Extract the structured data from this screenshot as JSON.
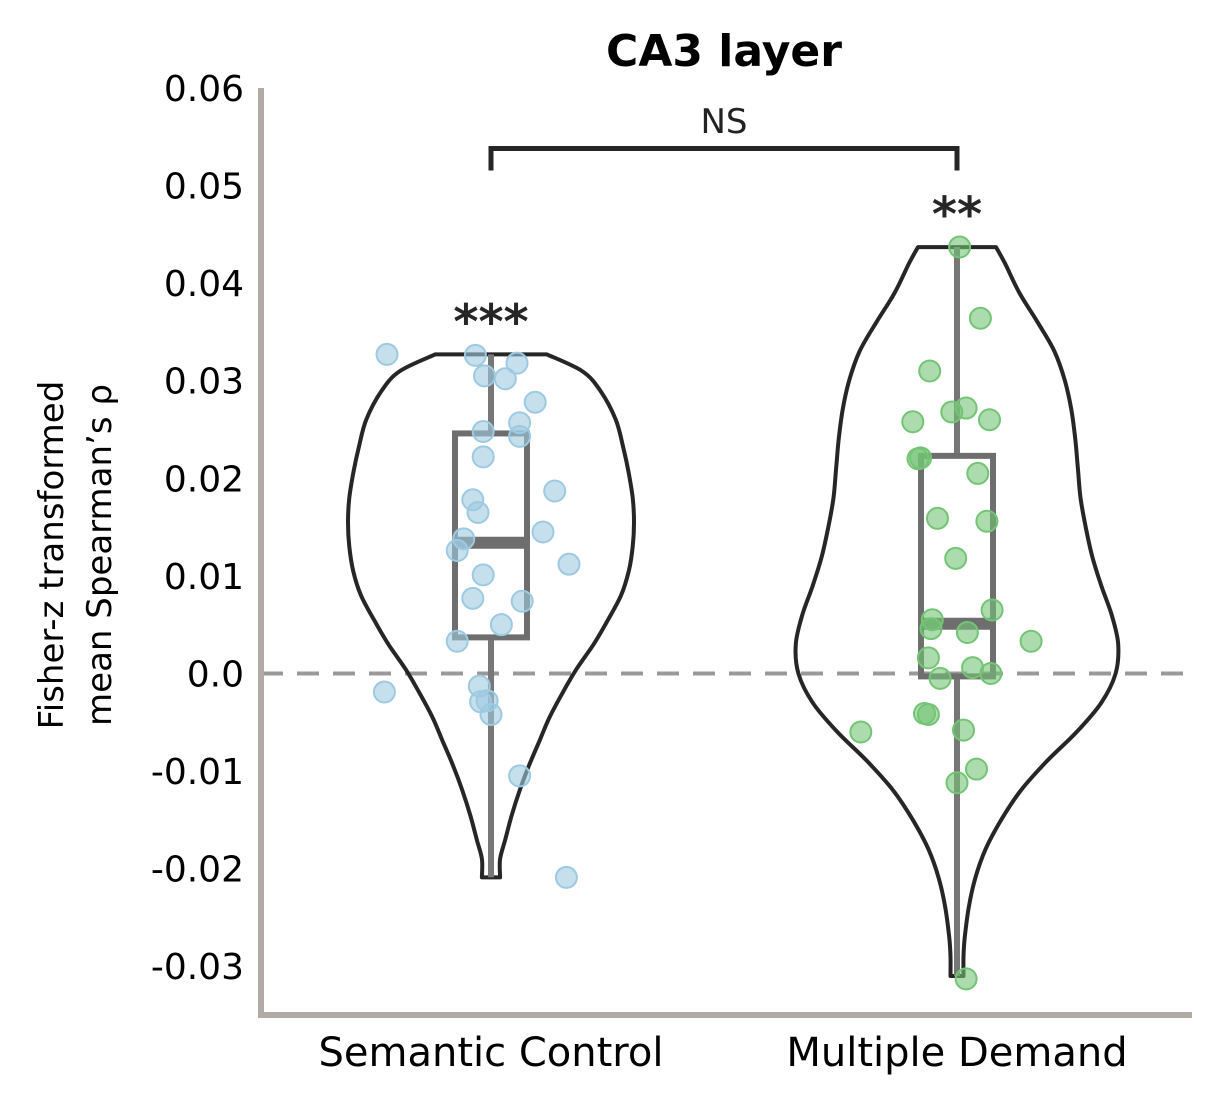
{
  "chart_data": {
    "type": "violin",
    "title": "CA3 layer",
    "ylabel_line1": "Fisher-z transformed",
    "ylabel_line2": "mean Spearman’s ρ",
    "ylim": [
      -0.035,
      0.06
    ],
    "yticks": [
      0.06,
      0.05,
      0.04,
      0.03,
      0.02,
      0.01,
      0.0,
      -0.01,
      -0.02,
      -0.03
    ],
    "ytick_labels": [
      "0.06",
      "0.05",
      "0.04",
      "0.03",
      "0.02",
      "0.01",
      "0.0",
      "-0.01",
      "-0.02",
      "-0.03"
    ],
    "categories": [
      "Semantic Control",
      "Multiple Demand"
    ],
    "reference_line": 0.0,
    "comparison": {
      "label": "NS",
      "between": [
        "Semantic Control",
        "Multiple Demand"
      ],
      "y": 0.0538
    },
    "series": [
      {
        "category": "Semantic Control",
        "color": "#9ecae1",
        "significance": "***",
        "box": {
          "whisker_low": -0.0209,
          "q1": 0.0037,
          "median": 0.0134,
          "q3": 0.0246,
          "whisker_high": 0.0327
        },
        "violin_profile": [
          [
            0.0327,
            0.43
          ],
          [
            0.031,
            0.7
          ],
          [
            0.029,
            0.84
          ],
          [
            0.026,
            0.96
          ],
          [
            0.023,
            1.02
          ],
          [
            0.0205,
            1.06
          ],
          [
            0.018,
            1.09
          ],
          [
            0.0155,
            1.1
          ],
          [
            0.013,
            1.09
          ],
          [
            0.0105,
            1.06
          ],
          [
            0.008,
            1.0
          ],
          [
            0.0055,
            0.9
          ],
          [
            0.003,
            0.79
          ],
          [
            0.0005,
            0.66
          ],
          [
            -0.002,
            0.55
          ],
          [
            -0.0045,
            0.45
          ],
          [
            -0.007,
            0.37
          ],
          [
            -0.0095,
            0.29
          ],
          [
            -0.012,
            0.22
          ],
          [
            -0.0145,
            0.16
          ],
          [
            -0.017,
            0.11
          ],
          [
            -0.019,
            0.07
          ],
          [
            -0.0209,
            0.07
          ]
        ],
        "points": [
          [
            -0.8,
            0.0327
          ],
          [
            -0.12,
            0.0326
          ],
          [
            -0.05,
            0.0305
          ],
          [
            0.11,
            0.0302
          ],
          [
            0.2,
            0.0318
          ],
          [
            0.34,
            0.0278
          ],
          [
            0.22,
            0.0257
          ],
          [
            0.22,
            0.0243
          ],
          [
            -0.06,
            0.0248
          ],
          [
            -0.06,
            0.0222
          ],
          [
            0.49,
            0.0187
          ],
          [
            -0.14,
            0.0178
          ],
          [
            -0.1,
            0.0165
          ],
          [
            0.4,
            0.0145
          ],
          [
            -0.21,
            0.0138
          ],
          [
            -0.26,
            0.0126
          ],
          [
            -0.06,
            0.0101
          ],
          [
            0.6,
            0.0112
          ],
          [
            -0.14,
            0.0077
          ],
          [
            0.24,
            0.0074
          ],
          [
            0.08,
            0.005
          ],
          [
            -0.26,
            0.0033
          ],
          [
            -0.82,
            -0.0019
          ],
          [
            -0.09,
            -0.0013
          ],
          [
            -0.08,
            -0.0029
          ],
          [
            -0.03,
            -0.0028
          ],
          [
            0.0,
            -0.0042
          ],
          [
            0.22,
            -0.0105
          ],
          [
            0.58,
            -0.0209
          ]
        ]
      },
      {
        "category": "Multiple Demand",
        "color": "#74c476",
        "significance": "**",
        "box": {
          "whisker_low": -0.031,
          "q1": -0.0003,
          "median": 0.0051,
          "q3": 0.0223,
          "whisker_high": 0.0437
        },
        "violin_profile": [
          [
            0.0437,
            0.3
          ],
          [
            0.042,
            0.37
          ],
          [
            0.039,
            0.48
          ],
          [
            0.036,
            0.62
          ],
          [
            0.033,
            0.75
          ],
          [
            0.03,
            0.83
          ],
          [
            0.027,
            0.88
          ],
          [
            0.024,
            0.91
          ],
          [
            0.021,
            0.93
          ],
          [
            0.018,
            0.95
          ],
          [
            0.015,
            0.99
          ],
          [
            0.012,
            1.04
          ],
          [
            0.009,
            1.11
          ],
          [
            0.006,
            1.19
          ],
          [
            0.003,
            1.24
          ],
          [
            0.0,
            1.22
          ],
          [
            -0.003,
            1.11
          ],
          [
            -0.006,
            0.92
          ],
          [
            -0.009,
            0.69
          ],
          [
            -0.012,
            0.49
          ],
          [
            -0.015,
            0.34
          ],
          [
            -0.018,
            0.22
          ],
          [
            -0.021,
            0.14
          ],
          [
            -0.024,
            0.09
          ],
          [
            -0.027,
            0.06
          ],
          [
            -0.029,
            0.05
          ],
          [
            -0.031,
            0.05
          ]
        ],
        "points": [
          [
            0.02,
            0.0437
          ],
          [
            0.18,
            0.0364
          ],
          [
            -0.21,
            0.031
          ],
          [
            -0.04,
            0.0268
          ],
          [
            0.07,
            0.0272
          ],
          [
            0.25,
            0.026
          ],
          [
            -0.34,
            0.0258
          ],
          [
            -0.28,
            0.0221
          ],
          [
            -0.3,
            0.022
          ],
          [
            0.16,
            0.0205
          ],
          [
            -0.15,
            0.0159
          ],
          [
            0.23,
            0.0156
          ],
          [
            -0.01,
            0.0118
          ],
          [
            -0.19,
            0.0055
          ],
          [
            -0.2,
            0.0046
          ],
          [
            -0.22,
            0.0016
          ],
          [
            0.27,
            0.0065
          ],
          [
            0.08,
            0.0042
          ],
          [
            0.57,
            0.0033
          ],
          [
            0.12,
            0.0006
          ],
          [
            0.26,
            0.0
          ],
          [
            -0.13,
            -0.0005
          ],
          [
            -0.25,
            -0.0041
          ],
          [
            -0.22,
            -0.0042
          ],
          [
            -0.74,
            -0.006
          ],
          [
            0.05,
            -0.0058
          ],
          [
            0.15,
            -0.0098
          ],
          [
            0.0,
            -0.0112
          ],
          [
            0.07,
            -0.0313
          ]
        ]
      }
    ]
  }
}
